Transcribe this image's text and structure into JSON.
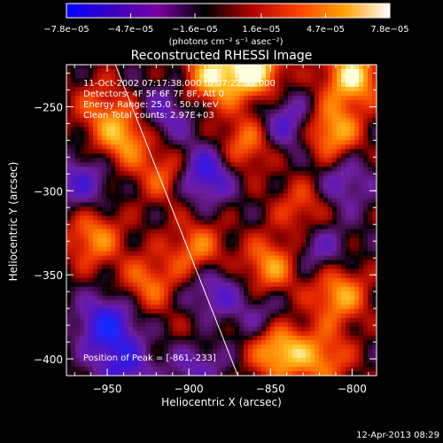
{
  "chart_data": {
    "type": "heatmap",
    "title": "Reconstructed RHESSI Image",
    "xlabel": "Heliocentric X (arcsec)",
    "ylabel": "Heliocentric Y (arcsec)",
    "xlim": [
      -975,
      -785
    ],
    "ylim": [
      -410,
      -225
    ],
    "x_ticks": [
      -950,
      -900,
      -850,
      -800
    ],
    "x_tick_labels": [
      "−950",
      "−900",
      "−850",
      "−800"
    ],
    "y_ticks": [
      -250,
      -300,
      -350,
      -400
    ],
    "y_tick_labels": [
      "−250",
      "−300",
      "−350",
      "−400"
    ],
    "colorbar": {
      "ticks": [
        -7.8e-05,
        -4.7e-05,
        -1.6e-05,
        1.6e-05,
        4.7e-05,
        7.8e-05
      ],
      "tick_labels": [
        "−7.8e−05",
        "−4.7e−05",
        "−1.6e−05",
        "1.6e−05",
        "4.7e−05",
        "7.8e−05"
      ],
      "unit_label": "(photons cm⁻² s⁻¹ asec⁻²)",
      "colors": [
        "#0000ff",
        "#3a00c0",
        "#7800a0",
        "#000000",
        "#b00000",
        "#ff4000",
        "#ffa000",
        "#ffffff"
      ]
    },
    "annotations": [
      "11-Oct-2002 07:17:38.000 to 07:22:32.000",
      "Detectors: 4F 5F 6F 7F 8F, Att 0",
      "Energy Range: 25.0 - 50.0 keV",
      "Clean    Total counts: 2.97E+03"
    ],
    "peak_label": "Position of Peak = [-861,-233]",
    "peak": [
      -861,
      -233
    ],
    "limb_line": [
      [
        -945,
        -225
      ],
      [
        -870,
        -410
      ]
    ],
    "blobs": [
      {
        "x": -940,
        "y": -268,
        "v": 0.75
      },
      {
        "x": -885,
        "y": -232,
        "v": 0.85
      },
      {
        "x": -860,
        "y": -228,
        "v": 1.0
      },
      {
        "x": -800,
        "y": -232,
        "v": 0.95
      },
      {
        "x": -812,
        "y": -265,
        "v": 0.8
      },
      {
        "x": -865,
        "y": -272,
        "v": 0.6
      },
      {
        "x": -915,
        "y": -290,
        "v": 0.5
      },
      {
        "x": -958,
        "y": -328,
        "v": 0.65
      },
      {
        "x": -925,
        "y": -355,
        "v": 0.55
      },
      {
        "x": -895,
        "y": -335,
        "v": 0.6
      },
      {
        "x": -850,
        "y": -345,
        "v": 0.7
      },
      {
        "x": -845,
        "y": -395,
        "v": 0.9
      },
      {
        "x": -808,
        "y": -362,
        "v": 0.75
      },
      {
        "x": -830,
        "y": -310,
        "v": 0.45
      },
      {
        "x": -955,
        "y": -250,
        "v": 0.4
      },
      {
        "x": -895,
        "y": -392,
        "v": 0.45
      },
      {
        "x": -818,
        "y": -400,
        "v": 0.6
      },
      {
        "x": -965,
        "y": -295,
        "v": -0.5
      },
      {
        "x": -915,
        "y": -255,
        "v": -0.45
      },
      {
        "x": -890,
        "y": -290,
        "v": -0.75
      },
      {
        "x": -840,
        "y": -260,
        "v": -0.55
      },
      {
        "x": -885,
        "y": -360,
        "v": -0.5
      },
      {
        "x": -950,
        "y": -380,
        "v": -0.85
      },
      {
        "x": -895,
        "y": -400,
        "v": -0.7
      },
      {
        "x": -855,
        "y": -375,
        "v": -0.35
      },
      {
        "x": -820,
        "y": -335,
        "v": -0.4
      },
      {
        "x": -805,
        "y": -295,
        "v": -0.45
      },
      {
        "x": -940,
        "y": -405,
        "v": -0.6
      }
    ]
  },
  "footer": {
    "timestamp": "12-Apr-2013 08:29"
  }
}
